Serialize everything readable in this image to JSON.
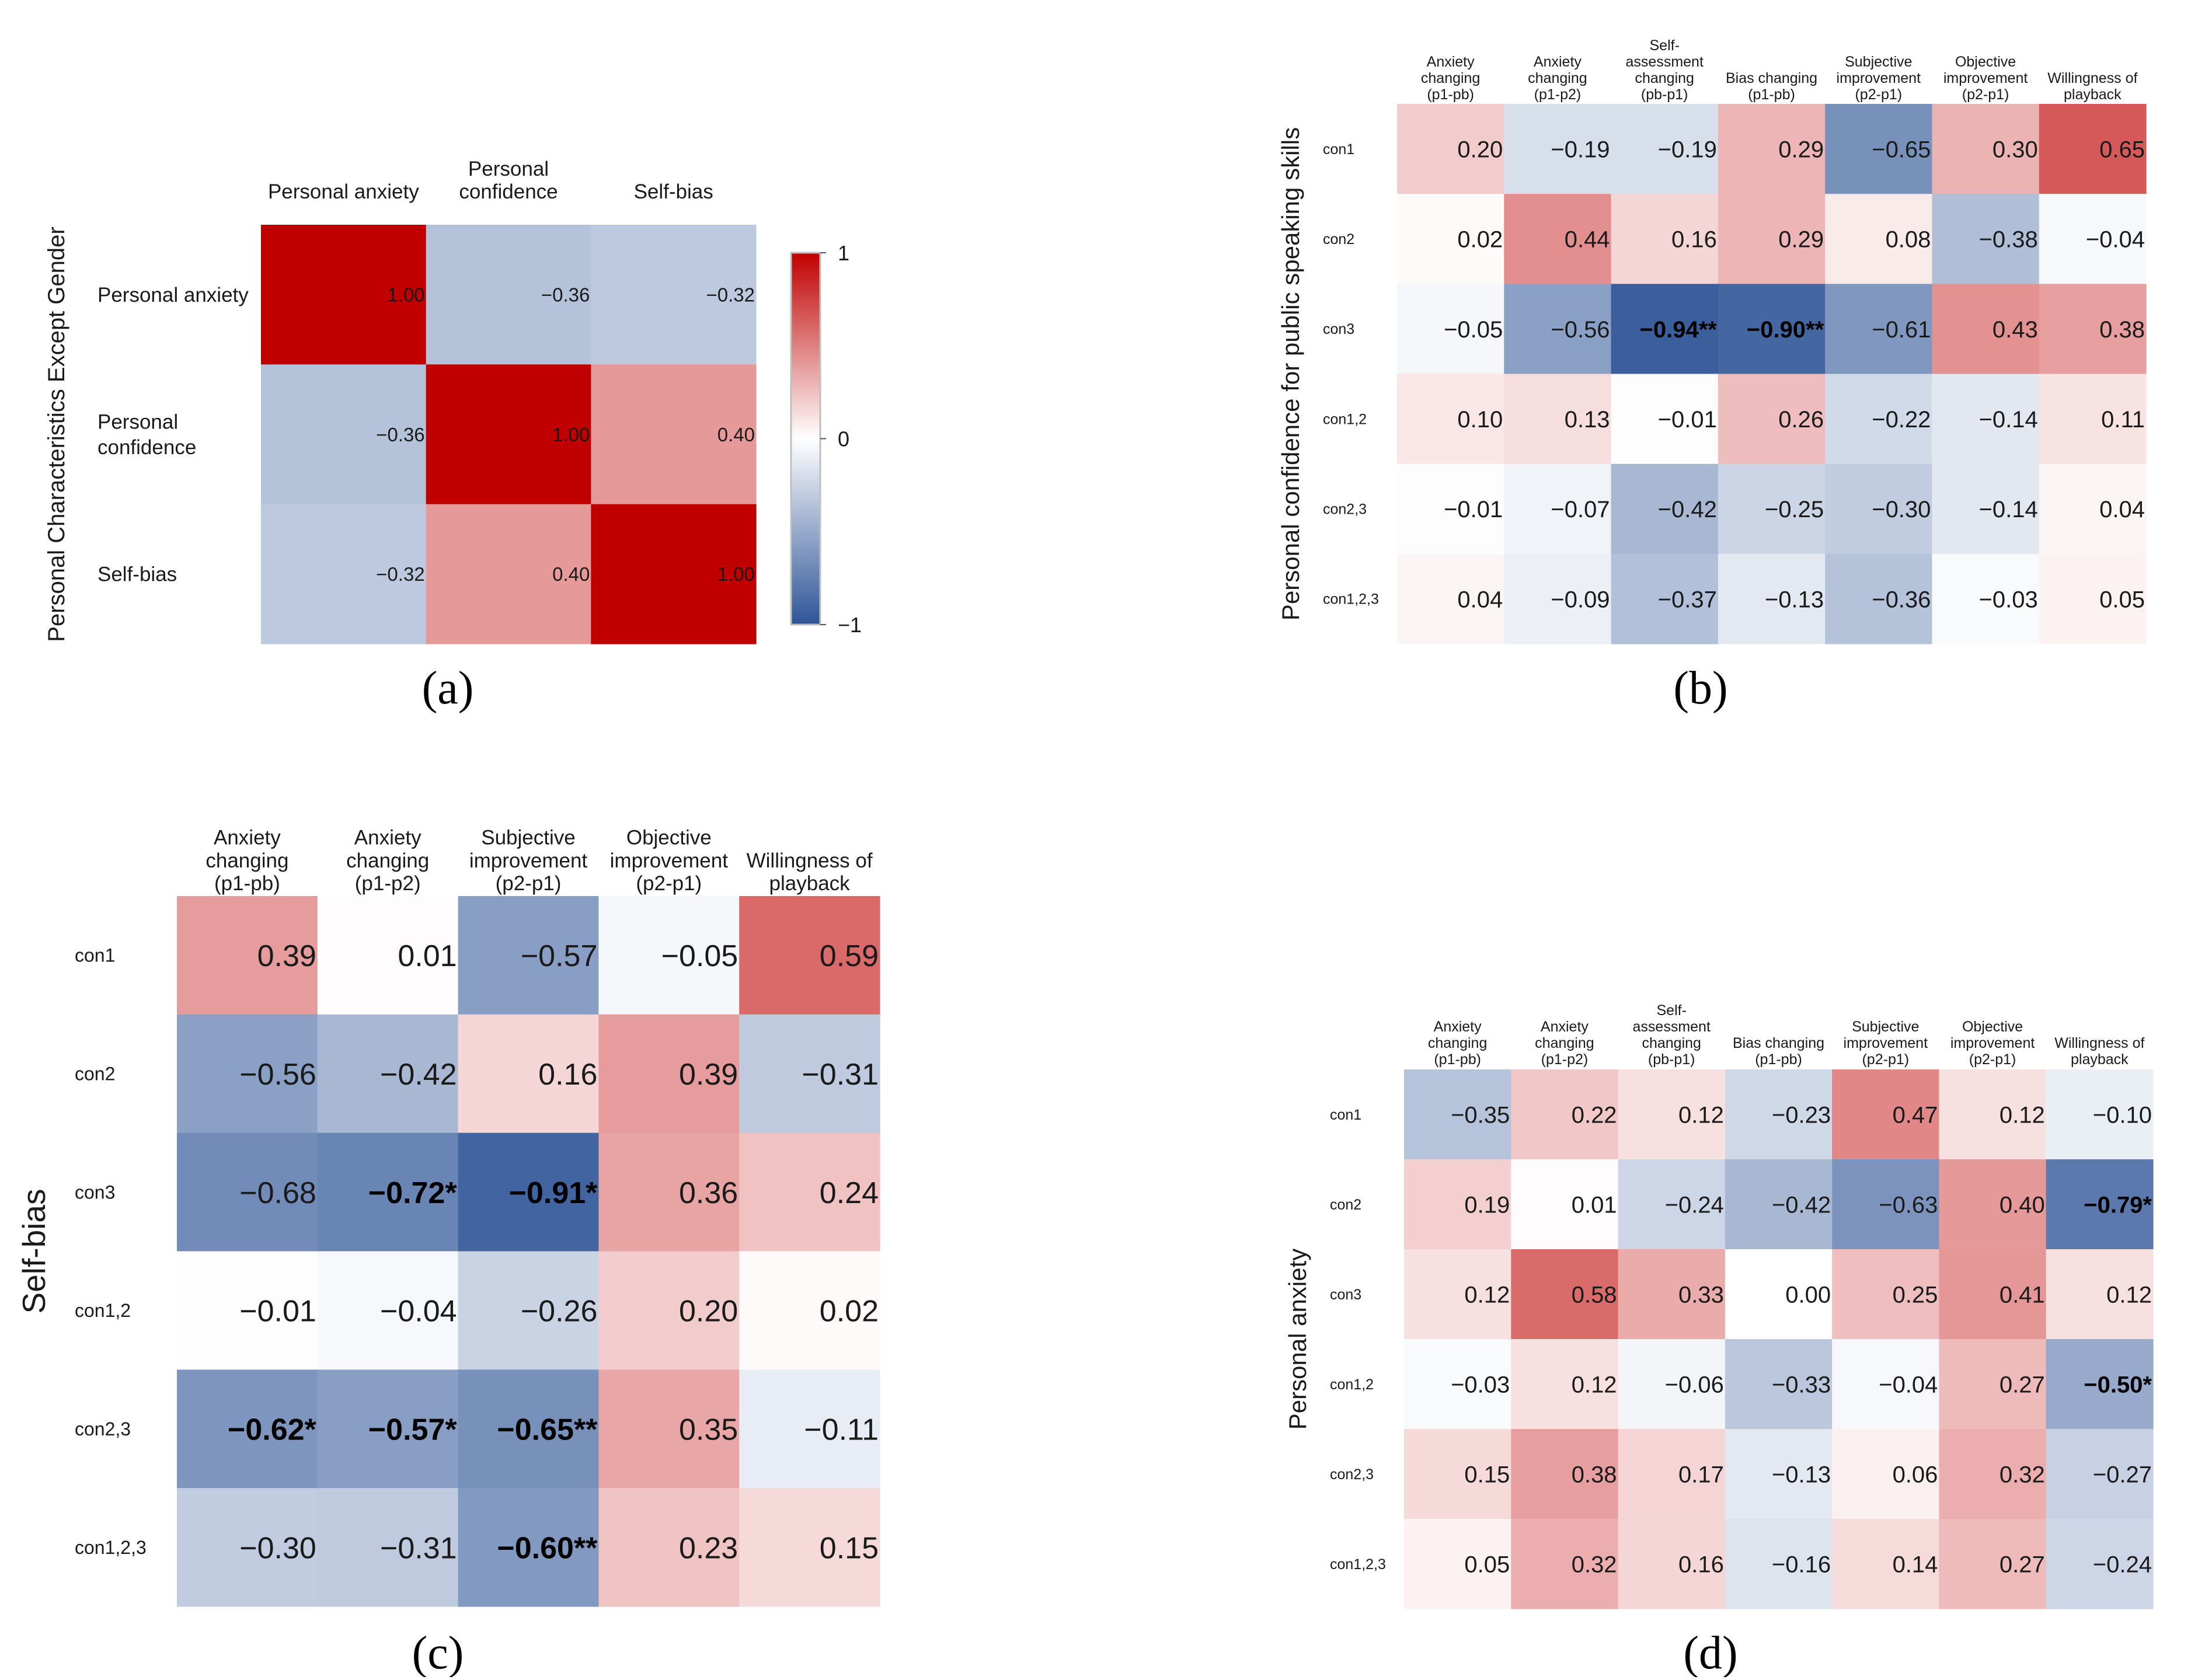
{
  "colors": {
    "negative": "#2f5597",
    "neutral": "#ffffff",
    "positive": "#c00000",
    "text": "#1a1a1a",
    "bold_text": "#000000"
  },
  "chart_data": [
    {
      "panel": "a",
      "panel_label": "(a)",
      "type": "heatmap",
      "ylabel": "Personal Characteristics Except Gender",
      "columns": [
        "Personal anxiety",
        "Personal confidence",
        "Self-bias"
      ],
      "rows": [
        "Personal anxiety",
        "Personal confidence",
        "Self-bias"
      ],
      "values": [
        [
          1.0,
          -0.36,
          -0.32
        ],
        [
          -0.36,
          1.0,
          0.4
        ],
        [
          -0.32,
          0.4,
          1.0
        ]
      ],
      "labels": [
        [
          "1.00",
          "−0.36",
          "−0.32"
        ],
        [
          "−0.36",
          "1.00",
          "0.40"
        ],
        [
          "−0.32",
          "0.40",
          "1.00"
        ]
      ],
      "bold": [
        [
          false,
          false,
          false
        ],
        [
          false,
          false,
          false
        ],
        [
          false,
          false,
          false
        ]
      ],
      "colorbar": {
        "range": [
          -1,
          1
        ],
        "ticks": [
          1,
          0,
          -1
        ],
        "tick_labels": [
          "1",
          "0",
          "−1"
        ]
      }
    },
    {
      "panel": "b",
      "panel_label": "(b)",
      "type": "heatmap",
      "ylabel": "Personal confidence for public speaking skills",
      "columns": [
        "Anxiety changing (p1-pb)",
        "Anxiety changing (p1-p2)",
        "Self-assessment changing (pb-p1)",
        "Bias changing (p1-pb)",
        "Subjective improvement (p2-p1)",
        "Objective improvement (p2-p1)",
        "Willingness of playback"
      ],
      "rows": [
        "con1",
        "con2",
        "con3",
        "con1,2",
        "con2,3",
        "con1,2,3"
      ],
      "values": [
        [
          0.2,
          -0.19,
          -0.19,
          0.29,
          -0.65,
          0.3,
          0.65
        ],
        [
          0.02,
          0.44,
          0.16,
          0.29,
          0.08,
          -0.38,
          -0.04
        ],
        [
          -0.05,
          -0.56,
          -0.94,
          -0.9,
          -0.61,
          0.43,
          0.38
        ],
        [
          0.1,
          0.13,
          -0.01,
          0.26,
          -0.22,
          -0.14,
          0.11
        ],
        [
          -0.01,
          -0.07,
          -0.42,
          -0.25,
          -0.3,
          -0.14,
          0.04
        ],
        [
          0.04,
          -0.09,
          -0.37,
          -0.13,
          -0.36,
          -0.03,
          0.05
        ]
      ],
      "labels": [
        [
          "0.20",
          "−0.19",
          "−0.19",
          "0.29",
          "−0.65",
          "0.30",
          "0.65"
        ],
        [
          "0.02",
          "0.44",
          "0.16",
          "0.29",
          "0.08",
          "−0.38",
          "−0.04"
        ],
        [
          "−0.05",
          "−0.56",
          "−0.94**",
          "−0.90**",
          "−0.61",
          "0.43",
          "0.38"
        ],
        [
          "0.10",
          "0.13",
          "−0.01",
          "0.26",
          "−0.22",
          "−0.14",
          "0.11"
        ],
        [
          "−0.01",
          "−0.07",
          "−0.42",
          "−0.25",
          "−0.30",
          "−0.14",
          "0.04"
        ],
        [
          "0.04",
          "−0.09",
          "−0.37",
          "−0.13",
          "−0.36",
          "−0.03",
          "0.05"
        ]
      ],
      "bold": [
        [
          false,
          false,
          false,
          false,
          false,
          false,
          false
        ],
        [
          false,
          false,
          false,
          false,
          false,
          false,
          false
        ],
        [
          false,
          false,
          true,
          true,
          false,
          false,
          false
        ],
        [
          false,
          false,
          false,
          false,
          false,
          false,
          false
        ],
        [
          false,
          false,
          false,
          false,
          false,
          false,
          false
        ],
        [
          false,
          false,
          false,
          false,
          false,
          false,
          false
        ]
      ]
    },
    {
      "panel": "c",
      "panel_label": "(c)",
      "type": "heatmap",
      "ylabel": "Self-bias",
      "columns": [
        "Anxiety changing (p1-pb)",
        "Anxiety changing (p1-p2)",
        "Subjective improvement (p2-p1)",
        "Objective improvement (p2-p1)",
        "Willingness of playback"
      ],
      "rows": [
        "con1",
        "con2",
        "con3",
        "con1,2",
        "con2,3",
        "con1,2,3"
      ],
      "values": [
        [
          0.39,
          0.01,
          -0.57,
          -0.05,
          0.59
        ],
        [
          -0.56,
          -0.42,
          0.16,
          0.39,
          -0.31
        ],
        [
          -0.68,
          -0.72,
          -0.91,
          0.36,
          0.24
        ],
        [
          -0.01,
          -0.04,
          -0.26,
          0.2,
          0.02
        ],
        [
          -0.62,
          -0.57,
          -0.65,
          0.35,
          -0.11
        ],
        [
          -0.3,
          -0.31,
          -0.6,
          0.23,
          0.15
        ]
      ],
      "labels": [
        [
          "0.39",
          "0.01",
          "−0.57",
          "−0.05",
          "0.59"
        ],
        [
          "−0.56",
          "−0.42",
          "0.16",
          "0.39",
          "−0.31"
        ],
        [
          "−0.68",
          "−0.72*",
          "−0.91*",
          "0.36",
          "0.24"
        ],
        [
          "−0.01",
          "−0.04",
          "−0.26",
          "0.20",
          "0.02"
        ],
        [
          "−0.62*",
          "−0.57*",
          "−0.65**",
          "0.35",
          "−0.11"
        ],
        [
          "−0.30",
          "−0.31",
          "−0.60**",
          "0.23",
          "0.15"
        ]
      ],
      "bold": [
        [
          false,
          false,
          false,
          false,
          false
        ],
        [
          false,
          false,
          false,
          false,
          false
        ],
        [
          false,
          true,
          true,
          false,
          false
        ],
        [
          false,
          false,
          false,
          false,
          false
        ],
        [
          true,
          true,
          true,
          false,
          false
        ],
        [
          false,
          false,
          true,
          false,
          false
        ]
      ]
    },
    {
      "panel": "d",
      "panel_label": "(d)",
      "type": "heatmap",
      "ylabel": "Personal anxiety",
      "columns": [
        "Anxiety changing (p1-pb)",
        "Anxiety changing (p1-p2)",
        "Self-assessment changing (pb-p1)",
        "Bias changing (p1-pb)",
        "Subjective improvement (p2-p1)",
        "Objective improvement (p2-p1)",
        "Willingness of playback"
      ],
      "rows": [
        "con1",
        "con2",
        "con3",
        "con1,2",
        "con2,3",
        "con1,2,3"
      ],
      "values": [
        [
          -0.35,
          0.22,
          0.12,
          -0.23,
          0.47,
          0.12,
          -0.1
        ],
        [
          0.19,
          0.01,
          -0.24,
          -0.42,
          -0.63,
          0.4,
          -0.79
        ],
        [
          0.12,
          0.58,
          0.33,
          0.0,
          0.25,
          0.41,
          0.12
        ],
        [
          -0.03,
          0.12,
          -0.06,
          -0.33,
          -0.04,
          0.27,
          -0.5
        ],
        [
          0.15,
          0.38,
          0.17,
          -0.13,
          0.06,
          0.32,
          -0.27
        ],
        [
          0.05,
          0.32,
          0.16,
          -0.16,
          0.14,
          0.27,
          -0.24
        ]
      ],
      "labels": [
        [
          "−0.35",
          "0.22",
          "0.12",
          "−0.23",
          "0.47",
          "0.12",
          "−0.10"
        ],
        [
          "0.19",
          "0.01",
          "−0.24",
          "−0.42",
          "−0.63",
          "0.40",
          "−0.79*"
        ],
        [
          "0.12",
          "0.58",
          "0.33",
          "0.00",
          "0.25",
          "0.41",
          "0.12"
        ],
        [
          "−0.03",
          "0.12",
          "−0.06",
          "−0.33",
          "−0.04",
          "0.27",
          "−0.50*"
        ],
        [
          "0.15",
          "0.38",
          "0.17",
          "−0.13",
          "0.06",
          "0.32",
          "−0.27"
        ],
        [
          "0.05",
          "0.32",
          "0.16",
          "−0.16",
          "0.14",
          "0.27",
          "−0.24"
        ]
      ],
      "bold": [
        [
          false,
          false,
          false,
          false,
          false,
          false,
          false
        ],
        [
          false,
          false,
          false,
          false,
          false,
          false,
          true
        ],
        [
          false,
          false,
          false,
          false,
          false,
          false,
          false
        ],
        [
          false,
          false,
          false,
          false,
          false,
          false,
          true
        ],
        [
          false,
          false,
          false,
          false,
          false,
          false,
          false
        ],
        [
          false,
          false,
          false,
          false,
          false,
          false,
          false
        ]
      ]
    }
  ]
}
